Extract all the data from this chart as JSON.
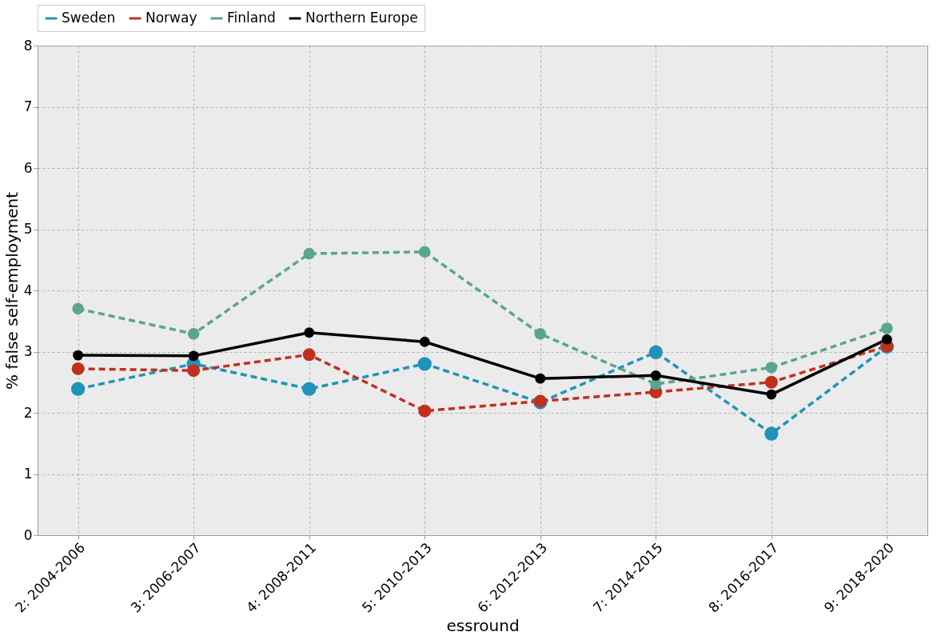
{
  "chart_data": {
    "type": "line",
    "xlabel": "essround",
    "ylabel": "% false self-employment",
    "categories": [
      "2: 2004-2006",
      "3: 2006-2007",
      "4: 2008-2011",
      "5: 2010-2013",
      "6: 2012-2013",
      "7: 2014-2015",
      "8: 2016-2017",
      "9: 2018-2020"
    ],
    "series": [
      {
        "name": "Sweden",
        "color": "#1f94b9",
        "line_style": "dashed",
        "values": [
          2.39,
          2.8,
          2.39,
          2.8,
          2.17,
          2.99,
          1.66,
          3.08
        ]
      },
      {
        "name": "Norway",
        "color": "#c1301f",
        "line_style": "dashed",
        "values": [
          2.72,
          2.69,
          2.95,
          2.03,
          2.19,
          2.34,
          2.5,
          3.09
        ]
      },
      {
        "name": "Finland",
        "color": "#5aa58f",
        "line_style": "dashed",
        "values": [
          3.7,
          3.29,
          4.6,
          4.63,
          3.29,
          2.47,
          2.74,
          3.38
        ]
      },
      {
        "name": "Northern Europe",
        "color": "#000000",
        "line_style": "solid",
        "values": [
          2.94,
          2.93,
          3.31,
          3.16,
          2.56,
          2.61,
          2.3,
          3.2
        ]
      }
    ],
    "ylim": [
      0,
      8
    ],
    "yticks": [
      0,
      1,
      2,
      3,
      4,
      5,
      6,
      7,
      8
    ],
    "grid": true,
    "legend": "top",
    "marker": "circle"
  }
}
